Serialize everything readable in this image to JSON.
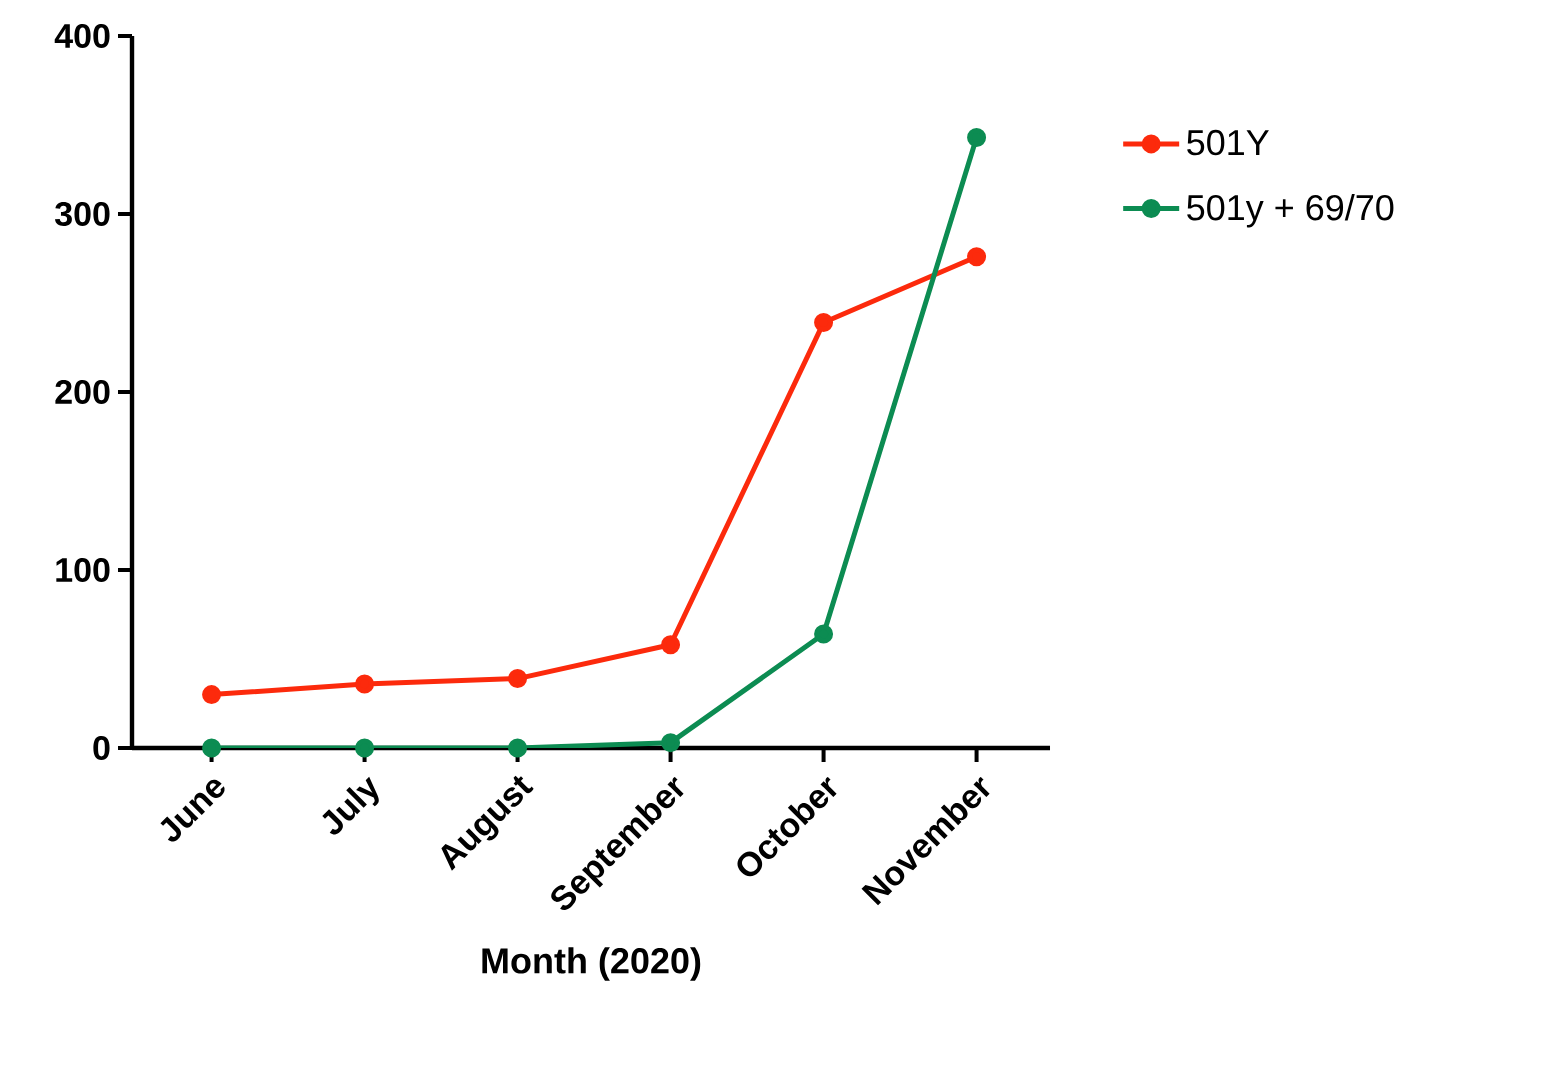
{
  "chart_data": {
    "type": "line",
    "xlabel": "Month (2020)",
    "categories": [
      "June",
      "July",
      "August",
      "September",
      "October",
      "November"
    ],
    "series": [
      {
        "name": "501Y",
        "color": "#fc2a0c",
        "values": [
          30,
          36,
          39,
          58,
          239,
          276
        ]
      },
      {
        "name": "501y + 69/70",
        "color": "#0c8c52",
        "values": [
          0,
          0,
          0,
          3,
          64,
          343
        ]
      }
    ],
    "ylim": [
      0,
      400
    ],
    "yticks": [
      0,
      100,
      200,
      300,
      400
    ],
    "marker": "circle",
    "line_style": "solid",
    "legend": "right",
    "grid": false
  }
}
